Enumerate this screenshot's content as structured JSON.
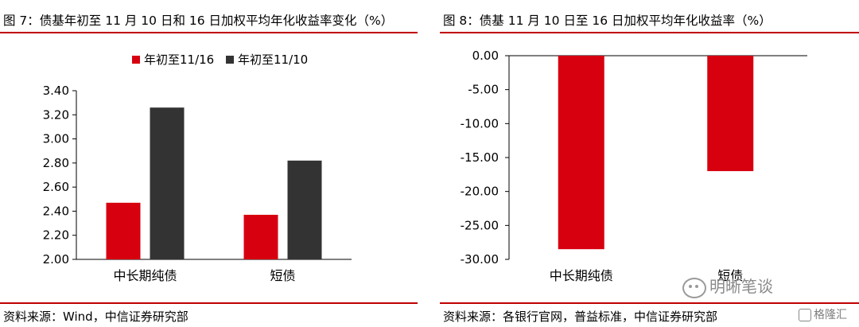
{
  "left_panel": {
    "title": "图 7：债基年初至 11 月 10 日和 16 日加权平均年化收益率变化（%）",
    "source": "资料来源：Wind，中信证券研究部"
  },
  "right_panel": {
    "title": "图 8：债基 11 月 10 日至 16 日加权平均年化收益率（%）",
    "source": "资料来源：各银行官网，普益标准，中信证券研究部"
  },
  "watermark": {
    "text": "明晰笔谈",
    "icon": "wechat-icon"
  },
  "logo": {
    "text": "格隆汇",
    "icon": "gelonghui-logo-icon"
  },
  "colors": {
    "red": "#d7000f",
    "dark": "#333333",
    "rule": "#c00000"
  },
  "chart_data": [
    {
      "type": "bar",
      "categories": [
        "中长期纯债",
        "短债"
      ],
      "series": [
        {
          "name": "年初至11/16",
          "color": "#d7000f",
          "values": [
            2.47,
            2.37
          ]
        },
        {
          "name": "年初至11/10",
          "color": "#333333",
          "values": [
            3.26,
            2.82
          ]
        }
      ],
      "ylim": [
        2.0,
        3.4
      ],
      "yticks": [
        "2.00",
        "2.20",
        "2.40",
        "2.60",
        "2.80",
        "3.00",
        "3.20",
        "3.40"
      ],
      "legend_position": "top-center",
      "grid": false
    },
    {
      "type": "bar",
      "categories": [
        "中长期纯债",
        "短债"
      ],
      "series": [
        {
          "color": "#d7000f",
          "values": [
            -28.5,
            -17.0
          ]
        }
      ],
      "ylim": [
        -30.0,
        0.0
      ],
      "yticks": [
        "0.00",
        "-5.00",
        "-10.00",
        "-15.00",
        "-20.00",
        "-25.00",
        "-30.00"
      ],
      "x_axis_position": "top",
      "grid": false
    }
  ]
}
